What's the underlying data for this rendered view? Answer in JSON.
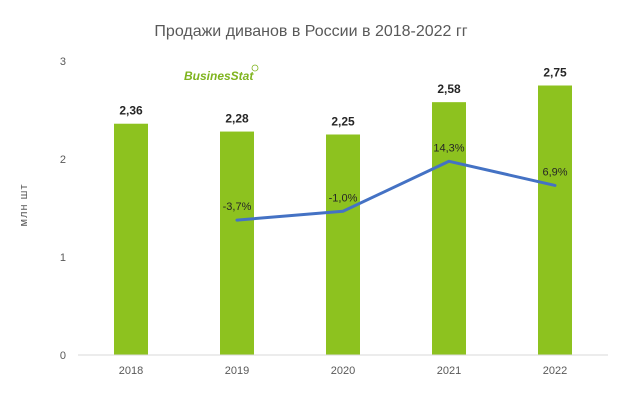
{
  "chart_data": {
    "type": "bar",
    "title": "Продажи диванов в России в 2018-2022 гг",
    "ylabel": "млн шт",
    "ylim": [
      0,
      3
    ],
    "y_ticks": [
      "0",
      "1",
      "2",
      "3"
    ],
    "categories": [
      "2018",
      "2019",
      "2020",
      "2021",
      "2022"
    ],
    "series": [
      {
        "type": "bar",
        "values": [
          2.36,
          2.28,
          2.25,
          2.58,
          2.75
        ],
        "labels": [
          "2,36",
          "2,28",
          "2,25",
          "2,58",
          "2,75"
        ],
        "color": "#8dc21f"
      },
      {
        "type": "line",
        "values": [
          null,
          -3.7,
          -1.0,
          14.3,
          6.9
        ],
        "labels": [
          "",
          "-3,7%",
          "-1,0%",
          "14,3%",
          "6,9%"
        ],
        "color": "#4472c4"
      }
    ],
    "grid": false
  },
  "logo": {
    "text": "BusinesStat"
  },
  "colors": {
    "axis": "#d9d9d9",
    "text": "#595959",
    "bar": "#8dc21f",
    "line": "#4472c4",
    "logo": "#7fb41e"
  }
}
